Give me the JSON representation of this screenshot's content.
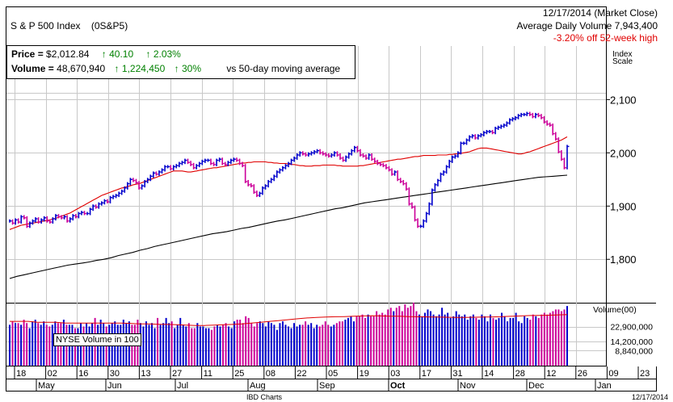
{
  "header": {
    "title": "S & P 500 Index",
    "symbol": "(0S&P5)",
    "date": "12/17/2014 (Market Close)",
    "avg_volume": "Average Daily Volume 7,943,400",
    "off_high": "-3.20% off 52-week high"
  },
  "info_box": {
    "price_label": "Price = ",
    "price_value": "$2,012.84",
    "price_change": "40.10",
    "price_change_pct": "2.03%",
    "volume_label": "Volume = ",
    "volume_value": "48,670,940",
    "volume_change": "1,224,450",
    "volume_change_pct": "30%",
    "volume_note": "vs 50-day moving average"
  },
  "index_scale_label": [
    "Index",
    "Scale"
  ],
  "volume_scale_label": "Volume(00)",
  "volume_legend": "NYSE Volume in 100",
  "footer": {
    "source": "IBD Charts",
    "date": "12/17/2014"
  },
  "colors": {
    "up": "#0000cc",
    "down": "#cc0099",
    "ma50": "#e00000",
    "ma200": "#000000",
    "grid": "#c8c8c8",
    "green": "#008000",
    "red": "#e00000"
  },
  "chart_data": {
    "type": "line",
    "price_axis": {
      "ylim": [
        1720,
        2140
      ],
      "ticks": [
        1800,
        1900,
        2000,
        2100
      ],
      "tick_labels": [
        "1,800",
        "1,900",
        "2,000",
        "2,100"
      ]
    },
    "volume_axis": {
      "ylim": [
        0,
        36000000
      ],
      "tick_labels": [
        "22,900,000",
        "14,200,000",
        "8,840,000"
      ],
      "tick_values": [
        22900000,
        14200000,
        8840000
      ]
    },
    "x_axis": {
      "day_labels": [
        "18",
        "02",
        "16",
        "30",
        "13",
        "27",
        "11",
        "25",
        "08",
        "22",
        "05",
        "19",
        "03",
        "17",
        "31",
        "14",
        "28",
        "12",
        "26",
        "09",
        "23"
      ],
      "month_labels": [
        "May",
        "Jun",
        "Jul",
        "Aug",
        "Sep",
        "Oct",
        "Nov",
        "Dec",
        "Jan"
      ],
      "highlight_month": "Oct"
    },
    "series": [
      {
        "name": "price",
        "values": [
          1872,
          1868,
          1874,
          1870,
          1880,
          1878,
          1862,
          1868,
          1872,
          1876,
          1870,
          1874,
          1878,
          1872,
          1870,
          1876,
          1882,
          1880,
          1878,
          1880,
          1872,
          1876,
          1882,
          1880,
          1886,
          1888,
          1886,
          1886,
          1894,
          1900,
          1898,
          1904,
          1906,
          1910,
          1908,
          1916,
          1918,
          1920,
          1924,
          1928,
          1934,
          1942,
          1950,
          1948,
          1944,
          1934,
          1938,
          1946,
          1950,
          1956,
          1962,
          1960,
          1964,
          1968,
          1974,
          1974,
          1970,
          1974,
          1976,
          1980,
          1982,
          1986,
          1982,
          1978,
          1972,
          1976,
          1980,
          1984,
          1986,
          1986,
          1980,
          1978,
          1986,
          1988,
          1980,
          1978,
          1982,
          1986,
          1988,
          1986,
          1980,
          1976,
          1946,
          1940,
          1938,
          1926,
          1920,
          1924,
          1934,
          1938,
          1946,
          1950,
          1956,
          1964,
          1968,
          1972,
          1976,
          1980,
          1986,
          1990,
          1996,
          2000,
          1998,
          1996,
          1998,
          2000,
          2002,
          2004,
          2000,
          1998,
          1996,
          1994,
          1996,
          2000,
          1996,
          1990,
          1986,
          1992,
          1998,
          2004,
          2010,
          2004,
          1996,
          1994,
          1990,
          1996,
          1988,
          1984,
          1980,
          1978,
          1976,
          1972,
          1968,
          1960,
          1964,
          1950,
          1946,
          1942,
          1932,
          1904,
          1898,
          1874,
          1862,
          1862,
          1872,
          1886,
          1904,
          1930,
          1940,
          1948,
          1960,
          1964,
          1974,
          1984,
          1992,
          1994,
          2000,
          2018,
          2018,
          2024,
          2030,
          2032,
          2028,
          2032,
          2034,
          2038,
          2040,
          2040,
          2038,
          2046,
          2048,
          2050,
          2052,
          2056,
          2062,
          2064,
          2066,
          2070,
          2072,
          2072,
          2074,
          2072,
          2068,
          2072,
          2070,
          2066,
          2058,
          2054,
          2052,
          2036,
          2026,
          2002,
          1988,
          1972,
          2012
        ]
      },
      {
        "name": "ma50",
        "values": [
          1856,
          1858,
          1860,
          1862,
          1864,
          1865,
          1866,
          1867,
          1868,
          1869,
          1870,
          1871,
          1872,
          1873,
          1874,
          1876,
          1877,
          1879,
          1881,
          1883,
          1885,
          1887,
          1890,
          1893,
          1896,
          1899,
          1902,
          1905,
          1908,
          1911,
          1914,
          1917,
          1920,
          1922,
          1924,
          1926,
          1928,
          1930,
          1932,
          1934,
          1935,
          1937,
          1938,
          1940,
          1941,
          1942,
          1944,
          1946,
          1948,
          1950,
          1952,
          1954,
          1956,
          1958,
          1960,
          1962,
          1964,
          1966,
          1966,
          1966,
          1966,
          1965,
          1964,
          1964,
          1965,
          1966,
          1967,
          1968,
          1969,
          1970,
          1971,
          1972,
          1972,
          1973,
          1974,
          1975,
          1976,
          1977,
          1978,
          1979,
          1980,
          1981,
          1981,
          1982,
          1982,
          1983,
          1983,
          1983,
          1983,
          1983,
          1982,
          1982,
          1981,
          1981,
          1980,
          1980,
          1980,
          1979,
          1978,
          1978,
          1977,
          1976,
          1976,
          1975,
          1975,
          1975,
          1976,
          1976,
          1976,
          1977,
          1977,
          1977,
          1977,
          1977,
          1976,
          1976,
          1975,
          1975,
          1975,
          1975,
          1975,
          1975,
          1976,
          1976,
          1977,
          1978,
          1979,
          1980,
          1981,
          1982,
          1983,
          1984,
          1985,
          1986,
          1987,
          1988,
          1988,
          1989,
          1990,
          1991,
          1992,
          1993,
          1993,
          1994,
          1995,
          1995,
          1995,
          1995,
          1995,
          1996,
          1996,
          1996,
          1996,
          1997,
          1997,
          1998,
          1998,
          1999,
          2000,
          2001,
          2002,
          2004,
          2006,
          2008,
          2009,
          2009,
          2009,
          2008,
          2007,
          2006,
          2005,
          2004,
          2003,
          2002,
          2001,
          2000,
          1999,
          1998,
          1998,
          1999,
          2001,
          2002,
          2004,
          2006,
          2008,
          2010,
          2012,
          2014,
          2016,
          2018,
          2020,
          2022,
          2024,
          2027,
          2030
        ]
      },
      {
        "name": "ma200",
        "values": [
          1764,
          1768,
          1771,
          1774,
          1777,
          1780,
          1783,
          1786,
          1789,
          1791,
          1793,
          1795,
          1798,
          1800,
          1803,
          1807,
          1810,
          1813,
          1817,
          1820,
          1824,
          1827,
          1830,
          1833,
          1836,
          1839,
          1842,
          1845,
          1848,
          1850,
          1852,
          1855,
          1858,
          1860,
          1863,
          1866,
          1869,
          1872,
          1874,
          1877,
          1880,
          1883,
          1886,
          1889,
          1892,
          1895,
          1897,
          1900,
          1903,
          1906,
          1908,
          1910,
          1912,
          1914,
          1916,
          1918,
          1920,
          1922,
          1924,
          1926,
          1928,
          1930,
          1932,
          1934,
          1936,
          1938,
          1940,
          1942,
          1944,
          1946,
          1948,
          1950,
          1952,
          1954,
          1955,
          1956,
          1957,
          1958
        ]
      },
      {
        "name": "volume",
        "values": [
          24,
          26,
          25,
          25,
          24,
          27,
          25,
          22,
          26,
          27,
          25,
          24,
          26,
          24,
          23,
          24,
          26,
          25,
          25,
          27,
          24,
          24,
          24,
          22,
          22,
          25,
          23,
          25,
          23,
          25,
          28,
          24,
          27,
          25,
          23,
          24,
          25,
          26,
          24,
          24,
          27,
          25,
          26,
          24,
          24,
          27,
          25,
          23,
          26,
          24,
          25,
          22,
          28,
          24,
          25,
          28,
          25,
          26,
          22,
          24,
          28,
          24,
          23,
          25,
          22,
          22,
          25,
          23,
          23,
          22,
          22,
          21,
          23,
          24,
          23,
          24,
          25,
          23,
          22,
          26,
          27,
          27,
          25,
          29,
          28,
          25,
          23,
          25,
          26,
          25,
          23,
          26,
          25,
          24,
          21,
          25,
          26,
          24,
          23,
          22,
          25,
          23,
          24,
          24,
          26,
          24,
          25,
          22,
          24,
          23,
          24,
          26,
          24,
          23,
          24,
          25,
          26,
          26,
          27,
          28,
          29,
          26,
          29,
          29,
          30,
          28,
          30,
          29,
          29,
          32,
          30,
          31,
          30,
          33,
          34,
          32,
          34,
          35,
          32,
          36,
          34,
          35,
          37,
          32,
          30,
          29,
          31,
          33,
          32,
          30,
          29,
          30,
          34,
          30,
          31,
          28,
          29,
          32,
          30,
          29,
          30,
          27,
          29,
          30,
          28,
          27,
          30,
          29,
          26,
          30,
          28,
          27,
          28,
          31,
          29,
          26,
          28,
          28,
          31,
          26,
          25,
          29,
          28,
          27,
          30,
          29,
          28,
          30,
          31,
          30,
          31,
          32,
          33,
          33,
          32,
          33,
          35
        ]
      },
      {
        "name": "volume_ma",
        "values": [
          26,
          26,
          26,
          25.5,
          25.5,
          25.5,
          25,
          25,
          25,
          25,
          25,
          25,
          25,
          24.8,
          24.5,
          24.5,
          24.3,
          24.2,
          24,
          23.8,
          23.6,
          23.6,
          23.8,
          24,
          24.2,
          24.5,
          25,
          25.5,
          26,
          26.5,
          27,
          27.5,
          28,
          28.3,
          28.5,
          28.7,
          28.8,
          29,
          29.2,
          29.3,
          29.2,
          29,
          29,
          28.8,
          28.7,
          28.6,
          28.5,
          28.4,
          28.3,
          28.3,
          28.4,
          28.5,
          28.6,
          28.8,
          29,
          29.2,
          29.4,
          29.5,
          29.6,
          29.8,
          30
        ]
      }
    ]
  }
}
